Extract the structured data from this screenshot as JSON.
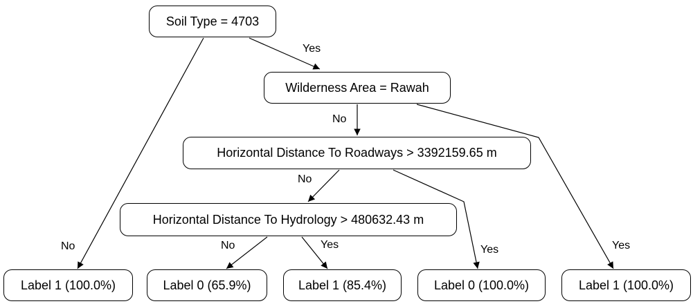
{
  "nodes": {
    "root": "Soil Type = 4703",
    "wilderness": "Wilderness Area = Rawah",
    "roadways": "Horizontal Distance To Roadways > 3392159.65 m",
    "hydrology": "Horizontal Distance To Hydrology > 480632.43 m",
    "leaf_1": "Label 1 (100.0%)",
    "leaf_2": "Label 0 (65.9%)",
    "leaf_3": "Label 1 (85.4%)",
    "leaf_4": "Label 0 (100.0%)",
    "leaf_5": "Label 1 (100.0%)"
  },
  "edge_labels": {
    "root_wilderness": "Yes",
    "root_leaf1": "No",
    "wilderness_roadways": "No",
    "wilderness_leaf5": "Yes",
    "roadways_hydrology": "No",
    "roadways_leaf4": "Yes",
    "hydrology_leaf2": "No",
    "hydrology_leaf3": "Yes"
  }
}
